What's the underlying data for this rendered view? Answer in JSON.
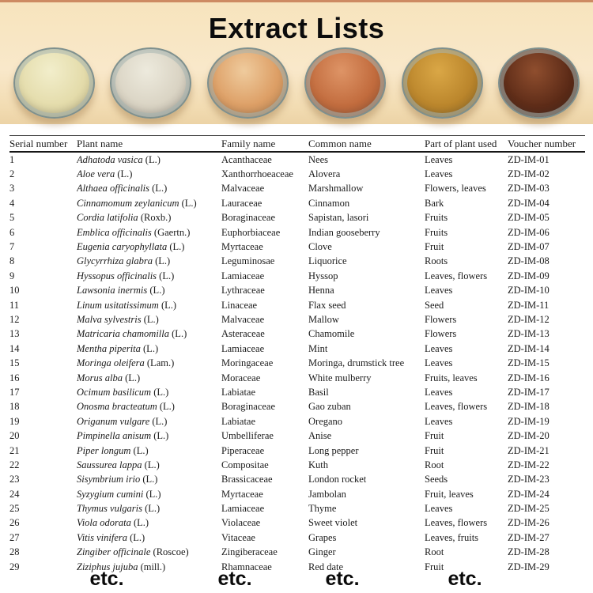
{
  "title": "Extract Lists",
  "bowls": [
    {
      "name": "powder-dish-1",
      "colors": [
        "#f2eecb",
        "#e4dcab",
        "#c8bd8c"
      ]
    },
    {
      "name": "powder-dish-2",
      "colors": [
        "#edeadd",
        "#dad4c4",
        "#b7afa1"
      ]
    },
    {
      "name": "powder-dish-3",
      "colors": [
        "#efcb9d",
        "#dd9f66",
        "#b8824f"
      ]
    },
    {
      "name": "powder-dish-4",
      "colors": [
        "#de9466",
        "#c26c3e",
        "#96502e"
      ]
    },
    {
      "name": "powder-dish-5",
      "colors": [
        "#daa746",
        "#bb862c",
        "#8d651f"
      ]
    },
    {
      "name": "powder-dish-6",
      "colors": [
        "#8f4e2e",
        "#5e2c18",
        "#3f1b0d"
      ]
    }
  ],
  "table": {
    "headers": [
      "Serial number",
      "Plant name",
      "Family name",
      "Common name",
      "Part of plant used",
      "Voucher number"
    ],
    "rows": [
      {
        "serial": "1",
        "plant": "Adhatoda vasica",
        "authority": "(L.)",
        "family": "Acanthaceae",
        "common": "Nees",
        "part": "Leaves",
        "voucher": "ZD-IM-01"
      },
      {
        "serial": "2",
        "plant": "Aloe vera",
        "authority": "(L.)",
        "family": "Xanthorrhoeaceae",
        "common": "Alovera",
        "part": "Leaves",
        "voucher": "ZD-IM-02"
      },
      {
        "serial": "3",
        "plant": "Althaea officinalis",
        "authority": "(L.)",
        "family": "Malvaceae",
        "common": "Marshmallow",
        "part": "Flowers, leaves",
        "voucher": "ZD-IM-03"
      },
      {
        "serial": "4",
        "plant": "Cinnamomum zeylanicum",
        "authority": "(L.)",
        "family": "Lauraceae",
        "common": "Cinnamon",
        "part": "Bark",
        "voucher": "ZD-IM-04"
      },
      {
        "serial": "5",
        "plant": "Cordia latifolia",
        "authority": "(Roxb.)",
        "family": "Boraginaceae",
        "common": "Sapistan, lasori",
        "part": "Fruits",
        "voucher": "ZD-IM-05"
      },
      {
        "serial": "6",
        "plant": "Emblica officinalis",
        "authority": "(Gaertn.)",
        "family": "Euphorbiaceae",
        "common": "Indian gooseberry",
        "part": "Fruits",
        "voucher": "ZD-IM-06"
      },
      {
        "serial": "7",
        "plant": "Eugenia caryophyllata",
        "authority": "(L.)",
        "family": "Myrtaceae",
        "common": "Clove",
        "part": "Fruit",
        "voucher": "ZD-IM-07"
      },
      {
        "serial": "8",
        "plant": "Glycyrrhiza glabra",
        "authority": "(L.)",
        "family": "Leguminosae",
        "common": "Liquorice",
        "part": "Roots",
        "voucher": "ZD-IM-08"
      },
      {
        "serial": "9",
        "plant": "Hyssopus officinalis",
        "authority": "(L.)",
        "family": "Lamiaceae",
        "common": "Hyssop",
        "part": "Leaves, flowers",
        "voucher": "ZD-IM-09"
      },
      {
        "serial": "10",
        "plant": "Lawsonia inermis",
        "authority": "(L.)",
        "family": "Lythraceae",
        "common": "Henna",
        "part": "Leaves",
        "voucher": "ZD-IM-10"
      },
      {
        "serial": "11",
        "plant": "Linum usitatissimum",
        "authority": "(L.)",
        "family": "Linaceae",
        "common": "Flax seed",
        "part": "Seed",
        "voucher": "ZD-IM-11"
      },
      {
        "serial": "12",
        "plant": "Malva sylvestris",
        "authority": "(L.)",
        "family": "Malvaceae",
        "common": "Mallow",
        "part": "Flowers",
        "voucher": "ZD-IM-12"
      },
      {
        "serial": "13",
        "plant": "Matricaria chamomilla",
        "authority": "(L.)",
        "family": "Asteraceae",
        "common": "Chamomile",
        "part": "Flowers",
        "voucher": "ZD-IM-13"
      },
      {
        "serial": "14",
        "plant": "Mentha piperita",
        "authority": "(L.)",
        "family": "Lamiaceae",
        "common": "Mint",
        "part": "Leaves",
        "voucher": "ZD-IM-14"
      },
      {
        "serial": "15",
        "plant": "Moringa oleifera",
        "authority": "(Lam.)",
        "family": "Moringaceae",
        "common": "Moringa, drumstick tree",
        "part": "Leaves",
        "voucher": "ZD-IM-15"
      },
      {
        "serial": "16",
        "plant": "Morus alba",
        "authority": "(L.)",
        "family": "Moraceae",
        "common": "White mulberry",
        "part": "Fruits, leaves",
        "voucher": "ZD-IM-16"
      },
      {
        "serial": "17",
        "plant": "Ocimum basilicum",
        "authority": "(L.)",
        "family": "Labiatae",
        "common": "Basil",
        "part": "Leaves",
        "voucher": "ZD-IM-17"
      },
      {
        "serial": "18",
        "plant": "Onosma bracteatum",
        "authority": "(L.)",
        "family": "Boraginaceae",
        "common": "Gao zuban",
        "part": "Leaves, flowers",
        "voucher": "ZD-IM-18"
      },
      {
        "serial": "19",
        "plant": "Origanum vulgare",
        "authority": "(L.)",
        "family": "Labiatae",
        "common": "Oregano",
        "part": "Leaves",
        "voucher": "ZD-IM-19"
      },
      {
        "serial": "20",
        "plant": "Pimpinella anisum",
        "authority": "(L.)",
        "family": "Umbelliferae",
        "common": "Anise",
        "part": "Fruit",
        "voucher": "ZD-IM-20"
      },
      {
        "serial": "21",
        "plant": "Piper longum",
        "authority": "(L.)",
        "family": "Piperaceae",
        "common": "Long pepper",
        "part": "Fruit",
        "voucher": "ZD-IM-21"
      },
      {
        "serial": "22",
        "plant": "Saussurea lappa",
        "authority": "(L.)",
        "family": "Compositae",
        "common": "Kuth",
        "part": "Root",
        "voucher": "ZD-IM-22"
      },
      {
        "serial": "23",
        "plant": "Sisymbrium irio",
        "authority": "(L.)",
        "family": "Brassicaceae",
        "common": "London rocket",
        "part": "Seeds",
        "voucher": "ZD-IM-23"
      },
      {
        "serial": "24",
        "plant": "Syzygium cumini",
        "authority": "(L.)",
        "family": "Myrtaceae",
        "common": "Jambolan",
        "part": "Fruit, leaves",
        "voucher": "ZD-IM-24"
      },
      {
        "serial": "25",
        "plant": "Thymus vulgaris",
        "authority": "(L.)",
        "family": "Lamiaceae",
        "common": "Thyme",
        "part": "Leaves",
        "voucher": "ZD-IM-25"
      },
      {
        "serial": "26",
        "plant": "Viola odorata",
        "authority": "(L.)",
        "family": "Violaceae",
        "common": "Sweet violet",
        "part": "Leaves, flowers",
        "voucher": "ZD-IM-26"
      },
      {
        "serial": "27",
        "plant": "Vitis vinifera",
        "authority": "(L.)",
        "family": "Vitaceae",
        "common": "Grapes",
        "part": "Leaves, fruits",
        "voucher": "ZD-IM-27"
      },
      {
        "serial": "28",
        "plant": "Zingiber officinale",
        "authority": "(Roscoe)",
        "family": "Zingiberaceae",
        "common": "Ginger",
        "part": "Root",
        "voucher": "ZD-IM-28"
      },
      {
        "serial": "29",
        "plant": "Ziziphus jujuba",
        "authority": "(mill.)",
        "family": "Rhamnaceae",
        "common": "Red date",
        "part": "Fruit",
        "voucher": "ZD-IM-29"
      }
    ]
  },
  "footer": {
    "etc_labels": [
      "etc.",
      "etc.",
      "etc.",
      "etc."
    ]
  }
}
